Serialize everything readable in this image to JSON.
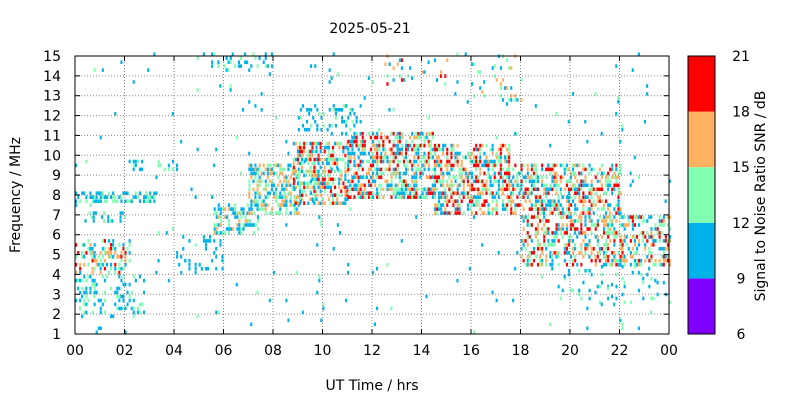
{
  "chart_data": {
    "type": "heatmap",
    "title": "2025-05-21",
    "xlabel": "UT Time / hrs",
    "ylabel": "Frequency / MHz",
    "colorbar_label": "Signal to Noise Ratio SNR / dB",
    "xlim": [
      0,
      24
    ],
    "ylim": [
      1,
      15
    ],
    "grid": true,
    "x_ticks": [
      "00",
      "02",
      "04",
      "06",
      "08",
      "10",
      "12",
      "14",
      "16",
      "18",
      "20",
      "22",
      "00"
    ],
    "y_ticks": [
      "1",
      "2",
      "3",
      "4",
      "5",
      "6",
      "7",
      "8",
      "9",
      "10",
      "11",
      "12",
      "13",
      "14",
      "15"
    ],
    "colorbar": {
      "range": [
        6,
        21
      ],
      "ticks": [
        "6",
        "9",
        "12",
        "15",
        "18",
        "21"
      ],
      "bands": [
        {
          "from": 6,
          "to": 9,
          "color": "#7f00ff"
        },
        {
          "from": 9,
          "to": 12,
          "color": "#00b2ea"
        },
        {
          "from": 12,
          "to": 15,
          "color": "#80ffb2"
        },
        {
          "from": 15,
          "to": 18,
          "color": "#ffb060"
        },
        {
          "from": 18,
          "to": 21,
          "color": "#ff0000"
        }
      ]
    },
    "regions": [
      {
        "t": [
          0.0,
          2.2
        ],
        "f": [
          4.0,
          5.8
        ],
        "snr": [
          10,
          20
        ],
        "density": 0.4
      },
      {
        "t": [
          0.0,
          2.8
        ],
        "f": [
          1.8,
          4.0
        ],
        "snr": [
          9,
          14
        ],
        "density": 0.22
      },
      {
        "t": [
          0.0,
          3.3
        ],
        "f": [
          7.6,
          8.1
        ],
        "snr": [
          9,
          14
        ],
        "density": 0.55
      },
      {
        "t": [
          0.3,
          2.0
        ],
        "f": [
          6.6,
          7.1
        ],
        "snr": [
          9,
          13
        ],
        "density": 0.3
      },
      {
        "t": [
          2.0,
          4.2
        ],
        "f": [
          9.2,
          9.7
        ],
        "snr": [
          9,
          13
        ],
        "density": 0.4
      },
      {
        "t": [
          4.0,
          6.0
        ],
        "f": [
          4.0,
          6.0
        ],
        "snr": [
          9,
          12
        ],
        "density": 0.15
      },
      {
        "t": [
          5.6,
          7.4
        ],
        "f": [
          6.0,
          7.6
        ],
        "snr": [
          9,
          16
        ],
        "density": 0.5
      },
      {
        "t": [
          7.0,
          9.0
        ],
        "f": [
          7.0,
          9.5
        ],
        "snr": [
          9,
          18
        ],
        "density": 0.55
      },
      {
        "t": [
          8.8,
          11.0
        ],
        "f": [
          7.5,
          10.5
        ],
        "snr": [
          9,
          20
        ],
        "density": 0.55
      },
      {
        "t": [
          11.0,
          14.5
        ],
        "f": [
          7.8,
          11.0
        ],
        "snr": [
          9,
          21
        ],
        "density": 0.55
      },
      {
        "t": [
          14.5,
          17.5
        ],
        "f": [
          7.0,
          10.5
        ],
        "snr": [
          9,
          21
        ],
        "density": 0.55
      },
      {
        "t": [
          17.5,
          22.0
        ],
        "f": [
          7.0,
          9.5
        ],
        "snr": [
          9,
          21
        ],
        "density": 0.5
      },
      {
        "t": [
          18.0,
          24.0
        ],
        "f": [
          4.4,
          7.0
        ],
        "snr": [
          9,
          21
        ],
        "density": 0.45
      },
      {
        "t": [
          19.5,
          24.0
        ],
        "f": [
          2.5,
          4.4
        ],
        "snr": [
          9,
          14
        ],
        "density": 0.1
      },
      {
        "t": [
          5.5,
          8.0
        ],
        "f": [
          14.2,
          15.0
        ],
        "snr": [
          9,
          14
        ],
        "density": 0.2
      },
      {
        "t": [
          9.0,
          11.5
        ],
        "f": [
          11.0,
          12.5
        ],
        "snr": [
          9,
          13
        ],
        "density": 0.25
      },
      {
        "t": [
          12.5,
          15.0
        ],
        "f": [
          13.5,
          15.0
        ],
        "snr": [
          9,
          21
        ],
        "density": 0.12
      },
      {
        "t": [
          16.0,
          18.0
        ],
        "f": [
          12.5,
          15.0
        ],
        "snr": [
          9,
          18
        ],
        "density": 0.1
      },
      {
        "t": [
          0.0,
          24.0
        ],
        "f": [
          1.0,
          15.0
        ],
        "snr": [
          9,
          13
        ],
        "density": 0.012
      }
    ]
  }
}
